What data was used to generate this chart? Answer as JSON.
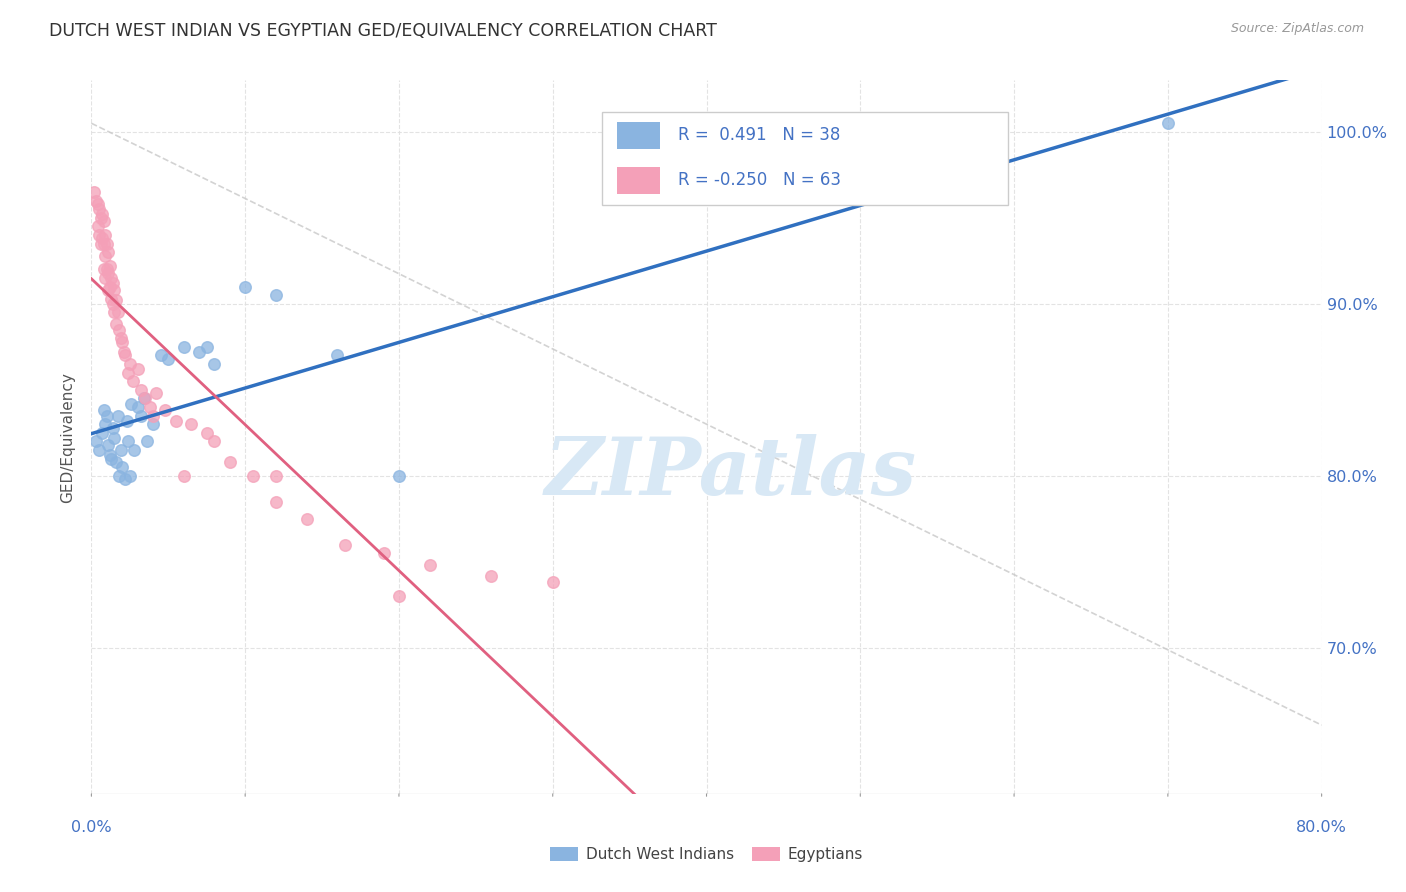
{
  "title": "DUTCH WEST INDIAN VS EGYPTIAN GED/EQUIVALENCY CORRELATION CHART",
  "source": "Source: ZipAtlas.com",
  "ylabel": "GED/Equivalency",
  "legend_label_blue": "Dutch West Indians",
  "legend_label_pink": "Egyptians",
  "r_blue": "0.491",
  "n_blue": "38",
  "r_pink": "-0.250",
  "n_pink": "63",
  "watermark": "ZIPatlas",
  "title_color": "#333333",
  "source_color": "#999999",
  "axis_label_color": "#4472c4",
  "blue_color": "#8ab4e0",
  "pink_color": "#f4a0b8",
  "trend_blue_color": "#3070c0",
  "trend_pink_color": "#e06080",
  "trend_dashed_color": "#c8c8c8",
  "watermark_color": "#d8e8f5",
  "grid_color": "#e0e0e0",
  "blue_scatter": {
    "x": [
      0.003,
      0.005,
      0.007,
      0.008,
      0.009,
      0.01,
      0.011,
      0.012,
      0.013,
      0.014,
      0.015,
      0.016,
      0.017,
      0.018,
      0.019,
      0.02,
      0.022,
      0.023,
      0.024,
      0.025,
      0.026,
      0.028,
      0.03,
      0.032,
      0.034,
      0.036,
      0.04,
      0.045,
      0.05,
      0.06,
      0.07,
      0.075,
      0.08,
      0.1,
      0.12,
      0.16,
      0.2,
      0.7
    ],
    "y": [
      0.82,
      0.815,
      0.825,
      0.838,
      0.83,
      0.835,
      0.818,
      0.812,
      0.81,
      0.828,
      0.822,
      0.808,
      0.835,
      0.8,
      0.815,
      0.805,
      0.798,
      0.832,
      0.82,
      0.8,
      0.842,
      0.815,
      0.84,
      0.835,
      0.845,
      0.82,
      0.83,
      0.87,
      0.868,
      0.875,
      0.872,
      0.875,
      0.865,
      0.91,
      0.905,
      0.87,
      0.8,
      1.005
    ]
  },
  "pink_scatter": {
    "x": [
      0.002,
      0.003,
      0.004,
      0.004,
      0.005,
      0.005,
      0.006,
      0.006,
      0.007,
      0.007,
      0.008,
      0.008,
      0.008,
      0.009,
      0.009,
      0.009,
      0.01,
      0.01,
      0.011,
      0.011,
      0.011,
      0.012,
      0.012,
      0.013,
      0.013,
      0.014,
      0.014,
      0.015,
      0.015,
      0.016,
      0.016,
      0.017,
      0.018,
      0.019,
      0.02,
      0.021,
      0.022,
      0.024,
      0.025,
      0.027,
      0.03,
      0.032,
      0.035,
      0.038,
      0.042,
      0.048,
      0.055,
      0.065,
      0.075,
      0.09,
      0.105,
      0.12,
      0.14,
      0.165,
      0.19,
      0.22,
      0.26,
      0.3,
      0.12,
      0.08,
      0.06,
      0.04,
      0.2
    ],
    "y": [
      0.965,
      0.96,
      0.958,
      0.945,
      0.955,
      0.94,
      0.95,
      0.935,
      0.952,
      0.938,
      0.948,
      0.935,
      0.92,
      0.94,
      0.928,
      0.915,
      0.935,
      0.92,
      0.93,
      0.918,
      0.908,
      0.922,
      0.91,
      0.915,
      0.903,
      0.912,
      0.9,
      0.908,
      0.895,
      0.902,
      0.888,
      0.895,
      0.885,
      0.88,
      0.878,
      0.872,
      0.87,
      0.86,
      0.865,
      0.855,
      0.862,
      0.85,
      0.845,
      0.84,
      0.848,
      0.838,
      0.832,
      0.83,
      0.825,
      0.808,
      0.8,
      0.785,
      0.775,
      0.76,
      0.755,
      0.748,
      0.742,
      0.738,
      0.8,
      0.82,
      0.8,
      0.835,
      0.73
    ]
  },
  "xlim": [
    0.0,
    0.8
  ],
  "ylim": [
    0.615,
    1.03
  ],
  "ytick_positions": [
    1.0,
    0.9,
    0.8,
    0.7
  ],
  "ytick_labels": [
    "100.0%",
    "90.0%",
    "80.0%",
    "70.0%"
  ],
  "xtick_positions": [
    0.0,
    0.1,
    0.2,
    0.3,
    0.4,
    0.5,
    0.6,
    0.7,
    0.8
  ]
}
